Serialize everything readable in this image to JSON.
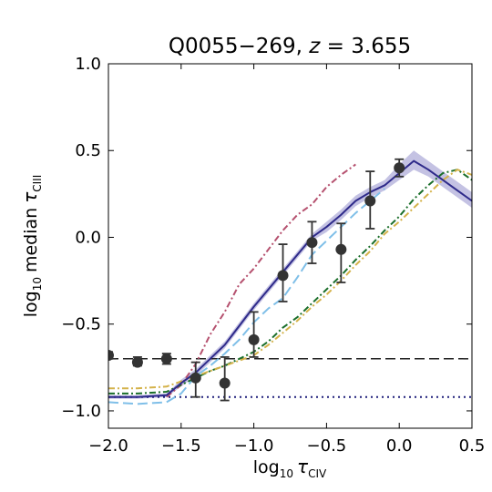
{
  "chart_data": {
    "type": "line",
    "title": {
      "main": "Q0055−269,",
      "var": "z",
      "rest": " = 3.655"
    },
    "xlabel": {
      "pre": "log",
      "sub": "10",
      "sym": "τ",
      "ion": "CIV"
    },
    "ylabel": {
      "pre": "log",
      "sub": "10",
      "word": "median",
      "sym": "τ",
      "ion": "CIII"
    },
    "xlim": [
      -2.0,
      0.5
    ],
    "ylim": [
      -1.1,
      1.0
    ],
    "x_ticks": [
      -2.0,
      -1.5,
      -1.0,
      -0.5,
      0.0,
      0.5
    ],
    "x_tick_labels": [
      "−2.0",
      "−1.5",
      "−1.0",
      "−0.5",
      "0.0",
      "0.5"
    ],
    "y_ticks": [
      -1.0,
      -0.5,
      0.0,
      0.5,
      1.0
    ],
    "y_tick_labels": [
      "−1.0",
      "−0.5",
      "0.0",
      "0.5",
      "1.0"
    ],
    "grid": false,
    "observed": {
      "points": [
        {
          "x": -2.0,
          "y": -0.68,
          "ylo": -0.7,
          "yhi": -0.66
        },
        {
          "x": -1.8,
          "y": -0.72,
          "ylo": -0.74,
          "yhi": -0.69
        },
        {
          "x": -1.6,
          "y": -0.7,
          "ylo": -0.73,
          "yhi": -0.67
        },
        {
          "x": -1.4,
          "y": -0.81,
          "ylo": -0.92,
          "yhi": -0.72
        },
        {
          "x": -1.2,
          "y": -0.84,
          "ylo": -0.94,
          "yhi": -0.69
        },
        {
          "x": -1.0,
          "y": -0.59,
          "ylo": -0.69,
          "yhi": -0.43
        },
        {
          "x": -0.8,
          "y": -0.22,
          "ylo": -0.37,
          "yhi": -0.04
        },
        {
          "x": -0.6,
          "y": -0.03,
          "ylo": -0.15,
          "yhi": 0.09
        },
        {
          "x": -0.4,
          "y": -0.07,
          "ylo": -0.26,
          "yhi": 0.08
        },
        {
          "x": -0.2,
          "y": 0.21,
          "ylo": 0.05,
          "yhi": 0.38
        },
        {
          "x": 0.0,
          "y": 0.4,
          "ylo": 0.35,
          "yhi": 0.45
        }
      ]
    },
    "reference_lines": [
      {
        "style": "dashed",
        "color": "#222222",
        "y": -0.7
      },
      {
        "style": "dotted",
        "color": "#1f1f7a",
        "y": -0.92
      }
    ],
    "series": [
      {
        "style": "solid",
        "color": "#2e2a8a",
        "band_color": "#8a86c8",
        "x": [
          -2.0,
          -1.8,
          -1.6,
          -1.5,
          -1.4,
          -1.3,
          -1.2,
          -1.1,
          -1.0,
          -0.9,
          -0.8,
          -0.7,
          -0.6,
          -0.5,
          -0.4,
          -0.3,
          -0.2,
          -0.1,
          0.0,
          0.1,
          0.2,
          0.3,
          0.4,
          0.5
        ],
        "y": [
          -0.92,
          -0.92,
          -0.91,
          -0.84,
          -0.78,
          -0.7,
          -0.62,
          -0.51,
          -0.4,
          -0.3,
          -0.2,
          -0.1,
          0.0,
          0.06,
          0.13,
          0.21,
          0.26,
          0.3,
          0.37,
          0.44,
          0.39,
          0.33,
          0.27,
          0.21
        ],
        "band_lo": [
          -0.93,
          -0.93,
          -0.92,
          -0.86,
          -0.8,
          -0.72,
          -0.64,
          -0.53,
          -0.42,
          -0.32,
          -0.22,
          -0.12,
          -0.02,
          0.03,
          0.1,
          0.18,
          0.23,
          0.27,
          0.33,
          0.39,
          0.35,
          0.29,
          0.23,
          0.17
        ],
        "band_hi": [
          -0.91,
          -0.91,
          -0.9,
          -0.82,
          -0.76,
          -0.68,
          -0.6,
          -0.49,
          -0.38,
          -0.28,
          -0.18,
          -0.08,
          0.02,
          0.09,
          0.16,
          0.24,
          0.29,
          0.33,
          0.42,
          0.5,
          0.44,
          0.38,
          0.32,
          0.26
        ]
      },
      {
        "style": "dashdot",
        "color": "#b5506e",
        "x": [
          -1.6,
          -1.5,
          -1.4,
          -1.3,
          -1.2,
          -1.1,
          -1.0,
          -0.9,
          -0.8,
          -0.7,
          -0.6,
          -0.5,
          -0.4,
          -0.3
        ],
        "y": [
          -0.92,
          -0.85,
          -0.73,
          -0.56,
          -0.43,
          -0.27,
          -0.18,
          -0.07,
          0.04,
          0.13,
          0.19,
          0.29,
          0.36,
          0.42
        ]
      },
      {
        "style": "dashed",
        "color": "#7fbfe8",
        "x": [
          -2.0,
          -1.8,
          -1.6,
          -1.5,
          -1.4,
          -1.3,
          -1.2,
          -1.1,
          -1.0,
          -0.9,
          -0.8,
          -0.7,
          -0.6,
          -0.5,
          -0.4,
          -0.3,
          -0.2,
          -0.1
        ],
        "y": [
          -0.95,
          -0.96,
          -0.95,
          -0.9,
          -0.8,
          -0.74,
          -0.67,
          -0.59,
          -0.49,
          -0.41,
          -0.35,
          -0.23,
          -0.1,
          -0.02,
          0.06,
          0.14,
          0.21,
          0.28
        ]
      },
      {
        "style": "dashdot",
        "color": "#1a6e2a",
        "x": [
          -2.0,
          -1.8,
          -1.6,
          -1.5,
          -1.4,
          -1.3,
          -1.2,
          -1.1,
          -1.0,
          -0.9,
          -0.8,
          -0.7,
          -0.6,
          -0.5,
          -0.4,
          -0.3,
          -0.2,
          -0.1,
          0.0,
          0.1,
          0.2,
          0.3,
          0.4,
          0.5
        ],
        "y": [
          -0.9,
          -0.9,
          -0.89,
          -0.85,
          -0.81,
          -0.77,
          -0.74,
          -0.7,
          -0.66,
          -0.6,
          -0.52,
          -0.46,
          -0.38,
          -0.3,
          -0.22,
          -0.13,
          -0.05,
          0.04,
          0.12,
          0.22,
          0.3,
          0.37,
          0.39,
          0.33
        ]
      },
      {
        "style": "dashdot",
        "color": "#d4b24a",
        "x": [
          -2.0,
          -1.8,
          -1.6,
          -1.5,
          -1.4,
          -1.3,
          -1.2,
          -1.1,
          -1.0,
          -0.9,
          -0.8,
          -0.7,
          -0.6,
          -0.5,
          -0.4,
          -0.3,
          -0.2,
          -0.1,
          0.0,
          0.1,
          0.2,
          0.3,
          0.4,
          0.5
        ],
        "y": [
          -0.87,
          -0.87,
          -0.86,
          -0.83,
          -0.8,
          -0.77,
          -0.74,
          -0.71,
          -0.68,
          -0.62,
          -0.55,
          -0.48,
          -0.4,
          -0.33,
          -0.25,
          -0.16,
          -0.08,
          0.02,
          0.09,
          0.17,
          0.25,
          0.33,
          0.39,
          0.36
        ]
      }
    ]
  }
}
